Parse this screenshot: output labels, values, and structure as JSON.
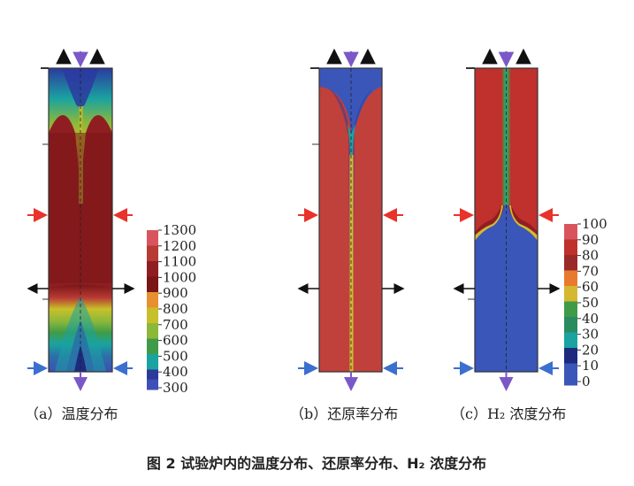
{
  "figure": {
    "caption": "图 2  试验炉内的温度分布、还原率分布、H₂ 浓度分布"
  },
  "panels": [
    {
      "id": "a",
      "label": "（a）温度分布",
      "colorbar_ticks": [
        "1300",
        "1200",
        "1100",
        "1000",
        "900",
        "800",
        "700",
        "600",
        "500",
        "400",
        "300"
      ]
    },
    {
      "id": "b",
      "label": "（b）还原率分布"
    },
    {
      "id": "c",
      "label": "（c）H₂ 浓度分布",
      "colorbar_ticks": [
        "100",
        "90",
        "80",
        "70",
        "60",
        "50",
        "40",
        "30",
        "20",
        "10",
        "0"
      ]
    }
  ],
  "colors": {
    "temperature_scale": [
      "#d8555e",
      "#b83a35",
      "#8f1e22",
      "#7a1616",
      "#c8c02a",
      "#8cb83a",
      "#3f9b48",
      "#1aa3a0",
      "#2c6fa8",
      "#1e2a7e",
      "#3f4fb8"
    ],
    "reduction_background": "#c0403c",
    "reduction_core": "#d4b830",
    "h2_red": "#c0302c",
    "h2_blue": "#3a56b8",
    "inlet_arrow_red": "#e8322a",
    "inlet_arrow_blue": "#3b6fd0",
    "gas_arrow_purple": "#7b58c8",
    "flow_arrow_black": "#111111"
  }
}
